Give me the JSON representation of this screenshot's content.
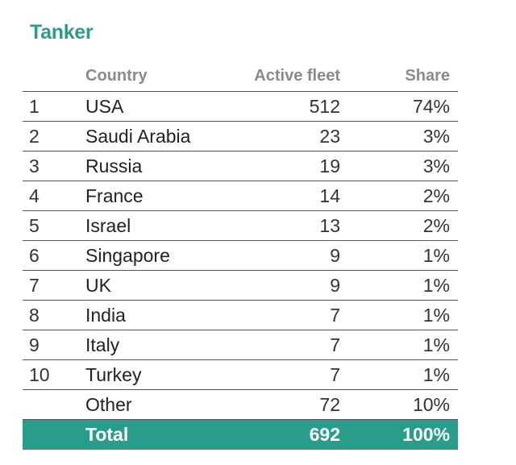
{
  "chart_data": {
    "type": "table",
    "title": "Tanker",
    "columns": [
      "",
      "Country",
      "Active fleet",
      "Share"
    ],
    "rows": [
      {
        "rank": "1",
        "country": "USA",
        "fleet": "512",
        "share": "74%"
      },
      {
        "rank": "2",
        "country": "Saudi Arabia",
        "fleet": "23",
        "share": "3%"
      },
      {
        "rank": "3",
        "country": "Russia",
        "fleet": "19",
        "share": "3%"
      },
      {
        "rank": "4",
        "country": "France",
        "fleet": "14",
        "share": "2%"
      },
      {
        "rank": "5",
        "country": "Israel",
        "fleet": "13",
        "share": "2%"
      },
      {
        "rank": "6",
        "country": "Singapore",
        "fleet": "9",
        "share": "1%"
      },
      {
        "rank": "7",
        "country": "UK",
        "fleet": "9",
        "share": "1%"
      },
      {
        "rank": "8",
        "country": "India",
        "fleet": "7",
        "share": "1%"
      },
      {
        "rank": "9",
        "country": "Italy",
        "fleet": "7",
        "share": "1%"
      },
      {
        "rank": "10",
        "country": "Turkey",
        "fleet": "7",
        "share": "1%"
      },
      {
        "rank": "",
        "country": "Other",
        "fleet": "72",
        "share": "10%"
      }
    ],
    "total": {
      "label": "Total",
      "fleet": "692",
      "share": "100%"
    },
    "colors": {
      "accent": "#2a9d8a",
      "header_text": "#8a8a8a"
    }
  }
}
